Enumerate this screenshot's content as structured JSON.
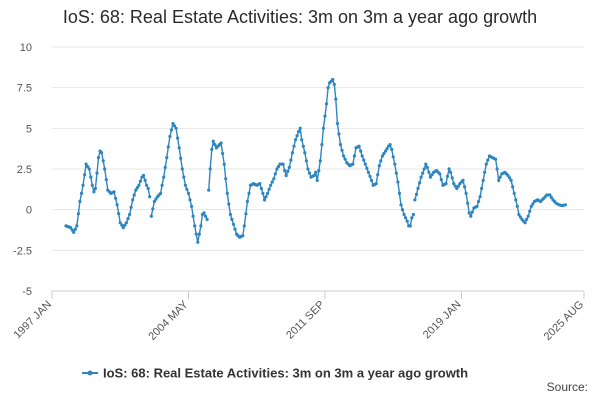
{
  "chart_data": {
    "type": "line",
    "title": "IoS: 68: Real Estate Activities: 3m on 3m a year ago growth",
    "xlabel": "",
    "ylabel": "",
    "ylim": [
      -5,
      10
    ],
    "yticks": [
      -5,
      -2.5,
      0,
      2.5,
      5,
      7.5,
      10
    ],
    "ytick_labels": [
      "-5",
      "-2.5",
      "0",
      "2.5",
      "5",
      "7.5",
      "10"
    ],
    "x_start": "1997-01",
    "x_end": "2025-08",
    "xticks": [
      {
        "label": "1997 JAN",
        "index": 0
      },
      {
        "label": "2004 MAY",
        "index": 88
      },
      {
        "label": "2011 SEP",
        "index": 176
      },
      {
        "label": "2019 JAN",
        "index": 264
      },
      {
        "label": "2025 AUG",
        "index": 343
      }
    ],
    "legend": {
      "position": "bottom",
      "entries": [
        "IoS: 68: Real Estate Activities: 3m on 3m a year ago growth"
      ]
    },
    "series_color": "#2e86c1",
    "series": [
      {
        "name": "IoS: 68: Real Estate Activities: 3m on 3m a year ago growth",
        "anchors": [
          [
            9,
            -1.0
          ],
          [
            12,
            -1.1
          ],
          [
            14,
            -1.4
          ],
          [
            16,
            -1.0
          ],
          [
            18,
            0.5
          ],
          [
            20,
            1.5
          ],
          [
            22,
            2.8
          ],
          [
            24,
            2.5
          ],
          [
            26,
            1.5
          ],
          [
            27,
            1.1
          ],
          [
            28,
            1.3
          ],
          [
            30,
            3.2
          ],
          [
            31,
            3.6
          ],
          [
            32,
            3.5
          ],
          [
            34,
            2.5
          ],
          [
            36,
            1.2
          ],
          [
            38,
            1.0
          ],
          [
            40,
            1.1
          ],
          [
            42,
            0.3
          ],
          [
            44,
            -0.8
          ],
          [
            46,
            -1.1
          ],
          [
            48,
            -0.8
          ],
          [
            50,
            -0.3
          ],
          [
            52,
            0.6
          ],
          [
            54,
            1.2
          ],
          [
            56,
            1.5
          ],
          [
            58,
            2.0
          ],
          [
            59,
            2.1
          ],
          [
            61,
            1.5
          ],
          [
            62,
            1.3
          ],
          [
            63,
            0.8
          ],
          [
            64,
            -0.4
          ],
          [
            66,
            0.5
          ],
          [
            68,
            0.8
          ],
          [
            70,
            1.0
          ],
          [
            72,
            2.0
          ],
          [
            74,
            3.2
          ],
          [
            76,
            4.5
          ],
          [
            78,
            5.3
          ],
          [
            80,
            5.0
          ],
          [
            82,
            3.8
          ],
          [
            84,
            2.5
          ],
          [
            86,
            1.5
          ],
          [
            88,
            1.0
          ],
          [
            90,
            0.2
          ],
          [
            92,
            -1.0
          ],
          [
            93,
            -1.5
          ],
          [
            94,
            -2.0
          ],
          [
            96,
            -1.0
          ],
          [
            97,
            -0.3
          ],
          [
            98,
            -0.2
          ],
          [
            99,
            -0.4
          ],
          [
            100,
            -0.6
          ],
          [
            101,
            1.2
          ],
          [
            102,
            2.5
          ],
          [
            103,
            3.7
          ],
          [
            104,
            4.2
          ],
          [
            105,
            4.0
          ],
          [
            106,
            3.8
          ],
          [
            108,
            4.0
          ],
          [
            109,
            4.1
          ],
          [
            111,
            2.8
          ],
          [
            113,
            1.0
          ],
          [
            115,
            -0.3
          ],
          [
            117,
            -0.9
          ],
          [
            119,
            -1.5
          ],
          [
            121,
            -1.7
          ],
          [
            123,
            -1.6
          ],
          [
            124,
            -1.0
          ],
          [
            126,
            0.5
          ],
          [
            128,
            1.5
          ],
          [
            130,
            1.6
          ],
          [
            132,
            1.5
          ],
          [
            134,
            1.6
          ],
          [
            136,
            1.0
          ],
          [
            137,
            0.6
          ],
          [
            139,
            1.0
          ],
          [
            141,
            1.5
          ],
          [
            143,
            1.9
          ],
          [
            145,
            2.5
          ],
          [
            147,
            2.8
          ],
          [
            149,
            2.8
          ],
          [
            150,
            2.4
          ],
          [
            151,
            2.1
          ],
          [
            153,
            2.6
          ],
          [
            155,
            3.5
          ],
          [
            157,
            4.3
          ],
          [
            159,
            4.8
          ],
          [
            160,
            5.0
          ],
          [
            161,
            4.3
          ],
          [
            163,
            3.5
          ],
          [
            165,
            2.5
          ],
          [
            167,
            2.0
          ],
          [
            169,
            2.1
          ],
          [
            170,
            2.3
          ],
          [
            171,
            1.8
          ],
          [
            173,
            3.0
          ],
          [
            175,
            5.0
          ],
          [
            177,
            6.5
          ],
          [
            178,
            7.5
          ],
          [
            179,
            7.8
          ],
          [
            180,
            7.9
          ],
          [
            181,
            8.0
          ],
          [
            182,
            7.7
          ],
          [
            183,
            6.8
          ],
          [
            184,
            5.3
          ],
          [
            186,
            4.0
          ],
          [
            188,
            3.3
          ],
          [
            190,
            2.9
          ],
          [
            192,
            2.7
          ],
          [
            194,
            2.8
          ],
          [
            196,
            3.8
          ],
          [
            198,
            3.9
          ],
          [
            200,
            3.3
          ],
          [
            202,
            2.8
          ],
          [
            204,
            2.3
          ],
          [
            206,
            1.8
          ],
          [
            207,
            1.5
          ],
          [
            209,
            1.6
          ],
          [
            211,
            2.7
          ],
          [
            213,
            3.3
          ],
          [
            215,
            3.6
          ],
          [
            217,
            3.9
          ],
          [
            218,
            4.0
          ],
          [
            219,
            3.7
          ],
          [
            221,
            2.8
          ],
          [
            223,
            1.7
          ],
          [
            225,
            0.3
          ],
          [
            227,
            -0.3
          ],
          [
            229,
            -0.7
          ],
          [
            230,
            -1.0
          ],
          [
            231,
            -1.0
          ],
          [
            232,
            -0.5
          ],
          [
            233,
            -0.3
          ],
          [
            234,
            0.6
          ],
          [
            236,
            1.3
          ],
          [
            238,
            2.0
          ],
          [
            240,
            2.5
          ],
          [
            241,
            2.8
          ],
          [
            242,
            2.6
          ],
          [
            244,
            2.0
          ],
          [
            246,
            2.3
          ],
          [
            248,
            2.4
          ],
          [
            250,
            2.2
          ],
          [
            252,
            1.5
          ],
          [
            254,
            1.6
          ],
          [
            256,
            2.5
          ],
          [
            257,
            2.3
          ],
          [
            259,
            1.6
          ],
          [
            261,
            1.3
          ],
          [
            263,
            1.6
          ],
          [
            265,
            1.8
          ],
          [
            267,
            1.0
          ],
          [
            269,
            -0.2
          ],
          [
            270,
            -0.4
          ],
          [
            272,
            0.1
          ],
          [
            274,
            0.2
          ],
          [
            276,
            0.8
          ],
          [
            278,
            1.8
          ],
          [
            280,
            2.8
          ],
          [
            282,
            3.3
          ],
          [
            284,
            3.2
          ],
          [
            286,
            3.1
          ],
          [
            287,
            2.5
          ],
          [
            288,
            1.8
          ],
          [
            290,
            2.2
          ],
          [
            292,
            2.3
          ],
          [
            294,
            2.1
          ],
          [
            296,
            1.8
          ],
          [
            298,
            1.0
          ],
          [
            300,
            0.2
          ],
          [
            301,
            -0.3
          ],
          [
            303,
            -0.6
          ],
          [
            305,
            -0.8
          ],
          [
            307,
            -0.4
          ],
          [
            309,
            0.2
          ],
          [
            311,
            0.5
          ],
          [
            313,
            0.6
          ],
          [
            315,
            0.5
          ],
          [
            317,
            0.7
          ],
          [
            319,
            0.9
          ],
          [
            321,
            0.9
          ],
          [
            323,
            0.6
          ],
          [
            325,
            0.4
          ],
          [
            327,
            0.3
          ],
          [
            329,
            0.25
          ],
          [
            331,
            0.3
          ]
        ],
        "gaps_after": [
          63,
          100,
          233
        ]
      }
    ]
  },
  "source_label": "Source:"
}
